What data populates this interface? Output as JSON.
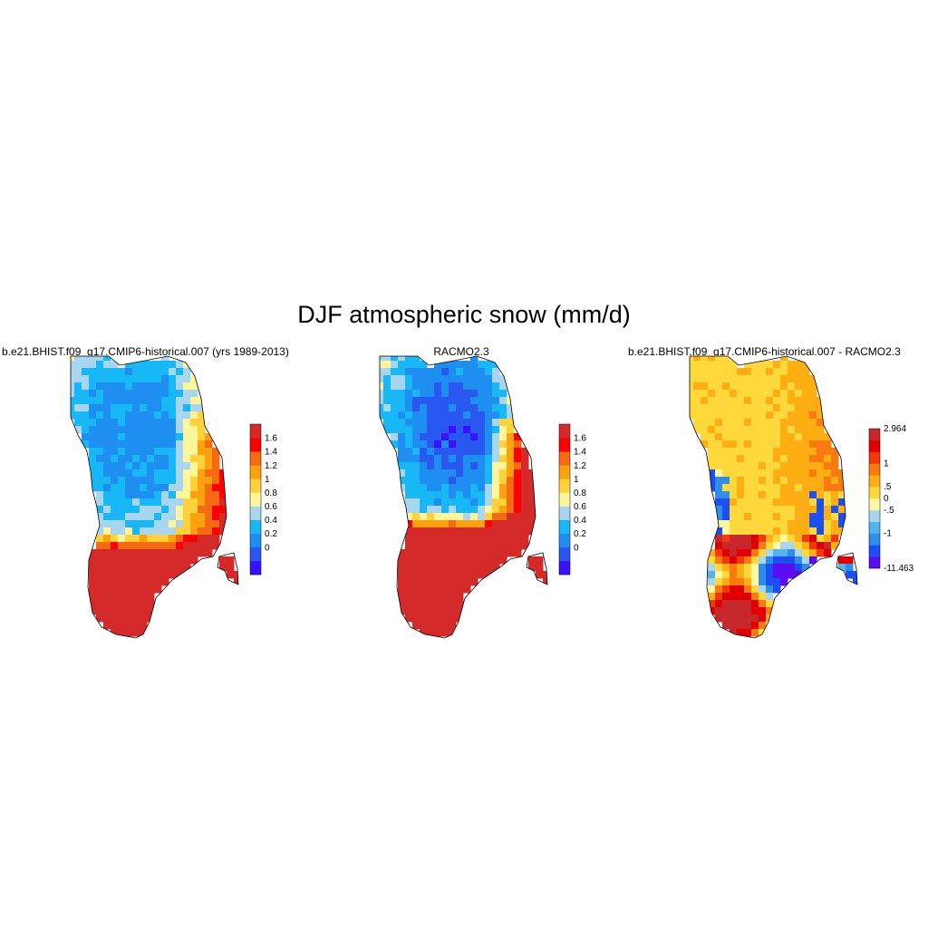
{
  "title": "DJF atmospheric snow (mm/d)",
  "colors": {
    "seq": [
      "#3a10ff",
      "#2858f0",
      "#1e8ff0",
      "#17b8f5",
      "#a8d6ef",
      "#fff59a",
      "#ffd23c",
      "#fda20f",
      "#f46b12",
      "#ff0000",
      "#d52a2a"
    ],
    "div": [
      "#5b0cf0",
      "#1b4ff2",
      "#2f8ee8",
      "#52b4ef",
      "#a9d6ef",
      "#fff7a2",
      "#ffd93b",
      "#feae12",
      "#f97a0f",
      "#f03a0c",
      "#e00000",
      "#c8282c"
    ]
  },
  "panels": [
    {
      "title": "b.e21.BHIST.f09_g17.CMIP6-historical.007 (yrs 1989-2013)",
      "colorbar": {
        "labels": [
          "1.6",
          "1.4",
          "1.2",
          "1",
          "0.8",
          "0.6",
          "0.4",
          "0.2",
          "0"
        ]
      }
    },
    {
      "title": "RACMO2.3",
      "colorbar": {
        "labels": [
          "1.6",
          "1.4",
          "1.2",
          "1",
          "0.8",
          "0.6",
          "0.4",
          "0.2",
          "0"
        ]
      }
    },
    {
      "title": "b.e21.BHIST.f09_g17.CMIP6-historical.007 - RACMO2.3",
      "colorbar": {
        "labels": [
          "2.964",
          "1",
          ".5",
          "0",
          "-.5",
          "-1",
          "-11.463"
        ]
      }
    }
  ]
}
